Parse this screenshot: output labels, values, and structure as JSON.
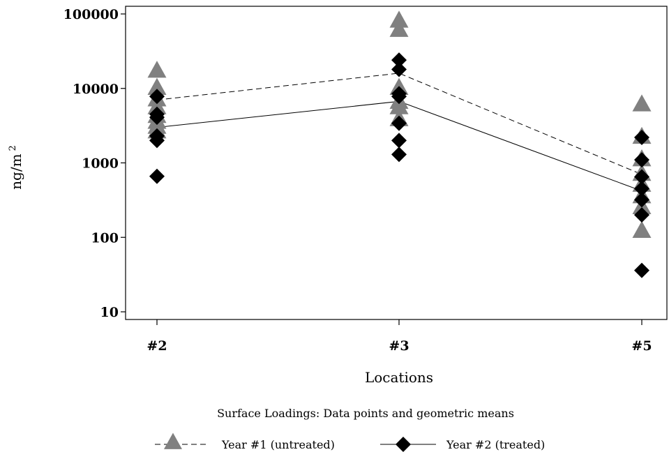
{
  "chart_data": {
    "type": "scatter",
    "xlabel": "Locations",
    "ylabel": "ng/m²",
    "ylabel_main": "ng/m",
    "ylabel_sup": "2",
    "categories": [
      "#2",
      "#3",
      "#5"
    ],
    "yscale": "log",
    "ylim": [
      10,
      100000
    ],
    "yticks": [
      10,
      100,
      1000,
      10000,
      100000
    ],
    "ytick_labels": [
      "10",
      "100",
      "1000",
      "10000",
      "100000"
    ],
    "caption": "Surface Loadings:  Data points and geometric means",
    "series": [
      {
        "name": "Year #1 (untreated)",
        "marker": "triangle",
        "marker_color": "#808080",
        "line_style": "dashed",
        "points": [
          [
            [
              17000,
              10000,
              7000,
              5500,
              4200,
              3500,
              3000,
              2600
            ]
          ],
          [
            [
              80000,
              60000,
              10000,
              6500,
              5500,
              3800
            ]
          ],
          [
            [
              6000,
              2200,
              1100,
              700,
              500,
              350,
              250,
              120
            ]
          ]
        ],
        "geometric_means": [
          7000,
          16000,
          700
        ]
      },
      {
        "name": "Year #2 (treated)",
        "marker": "diamond",
        "marker_color": "#000000",
        "line_style": "solid",
        "points": [
          [
            [
              7800,
              4500,
              4100,
              2300,
              2000,
              660
            ]
          ],
          [
            [
              24000,
              18000,
              8500,
              7800,
              3400,
              2000,
              1300
            ]
          ],
          [
            [
              2200,
              1100,
              650,
              450,
              320,
              200,
              36
            ]
          ]
        ],
        "geometric_means": [
          3000,
          6700,
          420
        ]
      }
    ],
    "legend": {
      "position": "bottom",
      "entries": [
        "Year #1 (untreated)",
        "Year #2 (treated)"
      ]
    },
    "grid": false
  }
}
